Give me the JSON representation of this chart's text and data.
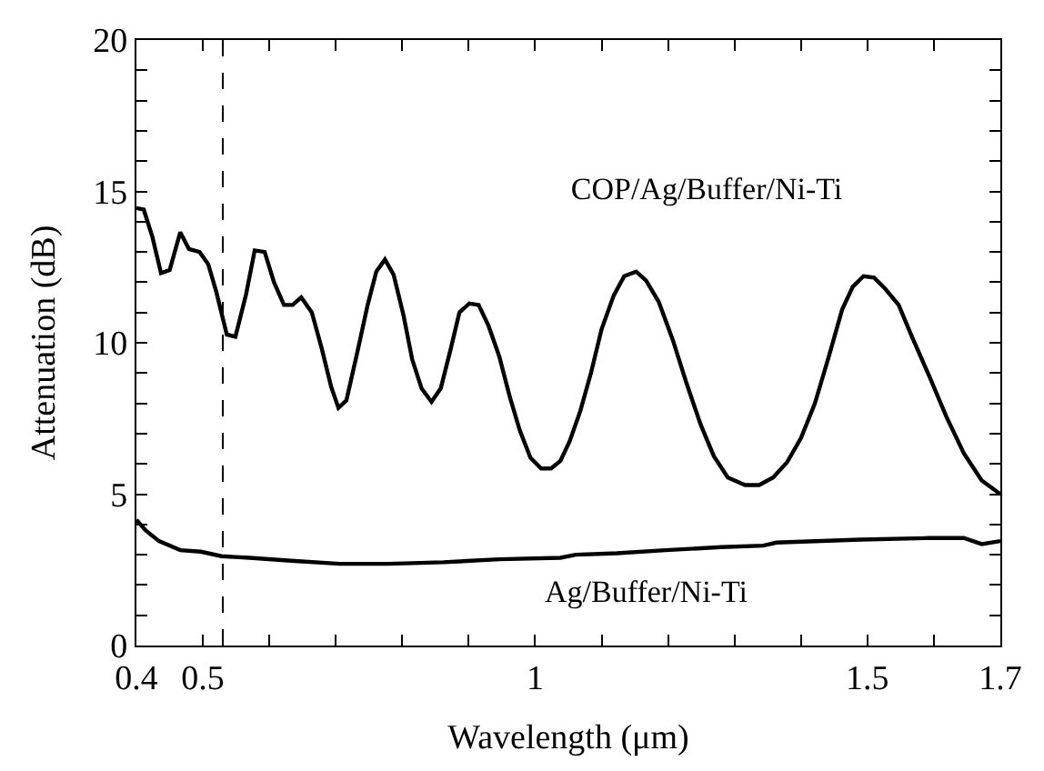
{
  "chart_data": {
    "type": "line",
    "xlabel": "Wavelength (μm)",
    "ylabel": "Attenuation (dB)",
    "xlim": [
      0.4,
      1.7
    ],
    "ylim": [
      0,
      20
    ],
    "xticks": [
      0.4,
      0.5,
      {
        "value": 0.6,
        "label": null
      },
      {
        "value": 0.7,
        "label": null
      },
      {
        "value": 0.8,
        "label": null
      },
      {
        "value": 0.9,
        "label": null
      },
      1,
      {
        "value": 1.1,
        "label": null
      },
      {
        "value": 1.2,
        "label": null
      },
      {
        "value": 1.3,
        "label": null
      },
      {
        "value": 1.4,
        "label": null
      },
      1.5,
      {
        "value": 1.6,
        "label": null
      },
      1.7
    ],
    "yticks": [
      0,
      {
        "value": 1,
        "label": null
      },
      {
        "value": 2,
        "label": null
      },
      {
        "value": 3,
        "label": null
      },
      {
        "value": 4,
        "label": null
      },
      5,
      {
        "value": 6,
        "label": null
      },
      {
        "value": 7,
        "label": null
      },
      {
        "value": 8,
        "label": null
      },
      {
        "value": 9,
        "label": null
      },
      10,
      {
        "value": 11,
        "label": null
      },
      {
        "value": 12,
        "label": null
      },
      {
        "value": 13,
        "label": null
      },
      {
        "value": 14,
        "label": null
      },
      15,
      {
        "value": 16,
        "label": null
      },
      {
        "value": 17,
        "label": null
      },
      {
        "value": 18,
        "label": null
      },
      {
        "value": 19,
        "label": null
      },
      20
    ],
    "grid": false,
    "legend": false,
    "marker": "none",
    "line_style": "solid",
    "ref_lines": [
      {
        "axis": "x",
        "value": 0.53,
        "line_style": "dashed",
        "color": "#000000"
      }
    ],
    "series": [
      {
        "name": "COP/Ag/Buffer/Ni-Ti",
        "color": "#000000",
        "x": [
          0.4,
          0.411,
          0.424,
          0.437,
          0.45,
          0.466,
          0.479,
          0.495,
          0.508,
          0.52,
          0.536,
          0.549,
          0.565,
          0.578,
          0.593,
          0.607,
          0.622,
          0.635,
          0.648,
          0.664,
          0.679,
          0.693,
          0.704,
          0.716,
          0.732,
          0.748,
          0.761,
          0.774,
          0.787,
          0.802,
          0.815,
          0.829,
          0.844,
          0.858,
          0.873,
          0.886,
          0.901,
          0.915,
          0.93,
          0.946,
          0.962,
          0.977,
          0.993,
          1.009,
          1.024,
          1.038,
          1.052,
          1.068,
          1.084,
          1.1,
          1.118,
          1.134,
          1.152,
          1.167,
          1.186,
          1.207,
          1.228,
          1.249,
          1.269,
          1.29,
          1.316,
          1.337,
          1.358,
          1.379,
          1.4,
          1.421,
          1.442,
          1.462,
          1.478,
          1.494,
          1.51,
          1.526,
          1.547,
          1.567,
          1.593,
          1.619,
          1.645,
          1.672,
          1.7
        ],
        "values": [
          14.45,
          14.4,
          13.5,
          12.3,
          12.4,
          13.65,
          13.1,
          13.0,
          12.6,
          11.7,
          10.27,
          10.2,
          11.6,
          13.05,
          13.0,
          12.0,
          11.25,
          11.25,
          11.5,
          11.0,
          9.8,
          8.55,
          7.85,
          8.1,
          9.65,
          11.25,
          12.35,
          12.75,
          12.25,
          10.9,
          9.45,
          8.5,
          8.05,
          8.5,
          9.8,
          11.0,
          11.3,
          11.25,
          10.55,
          9.55,
          8.2,
          7.1,
          6.2,
          5.85,
          5.85,
          6.1,
          6.75,
          7.75,
          9.0,
          10.45,
          11.55,
          12.2,
          12.35,
          12.05,
          11.35,
          10.1,
          8.65,
          7.3,
          6.25,
          5.55,
          5.3,
          5.3,
          5.55,
          6.05,
          6.85,
          8.0,
          9.55,
          11.1,
          11.85,
          12.2,
          12.15,
          11.8,
          11.25,
          10.2,
          8.9,
          7.55,
          6.35,
          5.45,
          5.0
        ]
      },
      {
        "name": "Ag/Buffer/Ni-Ti",
        "color": "#000000",
        "x": [
          0.4,
          0.414,
          0.434,
          0.466,
          0.497,
          0.528,
          0.57,
          0.633,
          0.706,
          0.779,
          0.862,
          0.946,
          1.038,
          1.061,
          1.123,
          1.196,
          1.28,
          1.343,
          1.363,
          1.489,
          1.593,
          1.645,
          1.672,
          1.7
        ],
        "values": [
          4.15,
          3.8,
          3.45,
          3.15,
          3.1,
          2.95,
          2.9,
          2.8,
          2.7,
          2.7,
          2.75,
          2.85,
          2.9,
          3.0,
          3.05,
          3.15,
          3.25,
          3.3,
          3.4,
          3.5,
          3.55,
          3.55,
          3.35,
          3.45
        ]
      }
    ]
  }
}
